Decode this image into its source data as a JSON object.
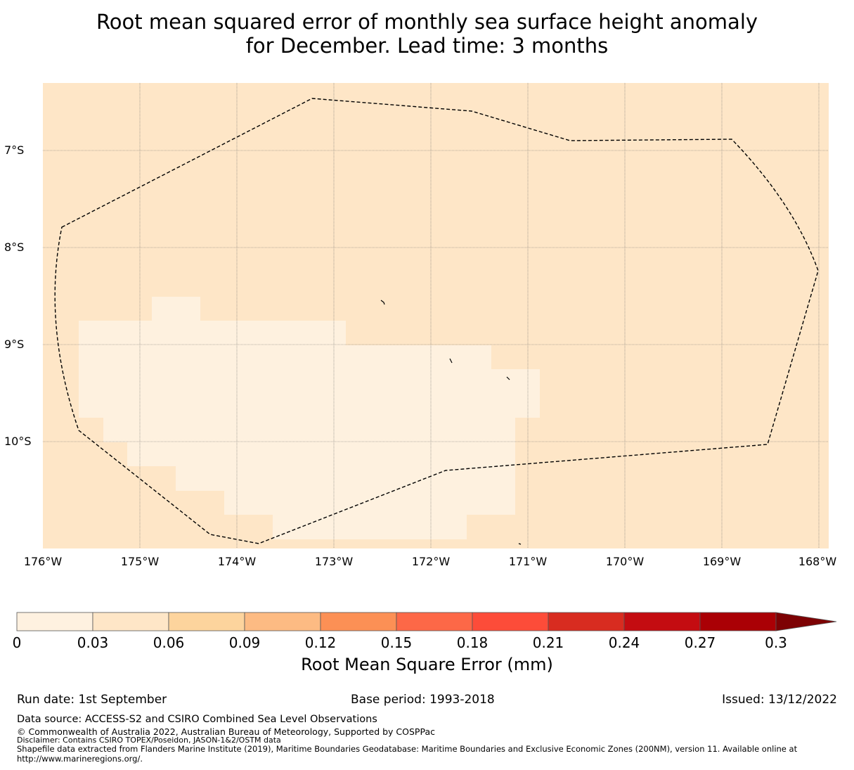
{
  "title": {
    "line1": "Root mean squared error of monthly sea surface height anomaly",
    "line2": "for December. Lead time: 3 months"
  },
  "map": {
    "lat_labels": [
      "7°S",
      "8°S",
      "9°S",
      "10°S"
    ],
    "lon_labels": [
      "176°W",
      "175°W",
      "174°W",
      "173°W",
      "172°W",
      "171°W",
      "170°W",
      "169°W",
      "168°W"
    ],
    "extent": {
      "lon_min": -176.0,
      "lon_max": -167.9,
      "lat_min": -11.0,
      "lat_max": -6.3
    },
    "background_color": "#fee6c7",
    "low_error_color": "#fef1df",
    "boundary_color": "#000000",
    "boundary": "Tokelau Exclusive Economic Zone (200NM)"
  },
  "colorbar": {
    "ticks": [
      "0",
      "0.03",
      "0.06",
      "0.09",
      "0.12",
      "0.15",
      "0.18",
      "0.21",
      "0.24",
      "0.27",
      "0.3"
    ],
    "colors": [
      "#fef1e0",
      "#fee6c7",
      "#fdd49d",
      "#fdbb83",
      "#fc9055",
      "#fd6847",
      "#fd4c39",
      "#d82c20",
      "#c40c11",
      "#aa0005"
    ],
    "extend_color": "#7d0204",
    "label": "Root Mean Square Error (mm)"
  },
  "info": {
    "run_date": "Run date: 1st September",
    "base_period": "Base period: 1993-2018",
    "issued": "Issued: 13/12/2022"
  },
  "footer": {
    "data_source": "Data source: ACCESS-S2 and CSIRO Combined Sea Level Observations",
    "copyright": "© Commonwealth of Australia 2022, Australian Bureau of Meteorology, Supported by COSPPac",
    "disclaimer": "Disclaimer: Contains CSIRO TOPEX/Poseidon, JASON-1&2/OSTM data",
    "shapefile_line1": "Shapefile data extracted from Flanders Marine Institute (2019), Maritime Boundaries Geodatabase: Maritime Boundaries and Exclusive Economic Zones (200NM), version 11. Available online at",
    "shapefile_line2": "http://www.marineregions.org/."
  }
}
